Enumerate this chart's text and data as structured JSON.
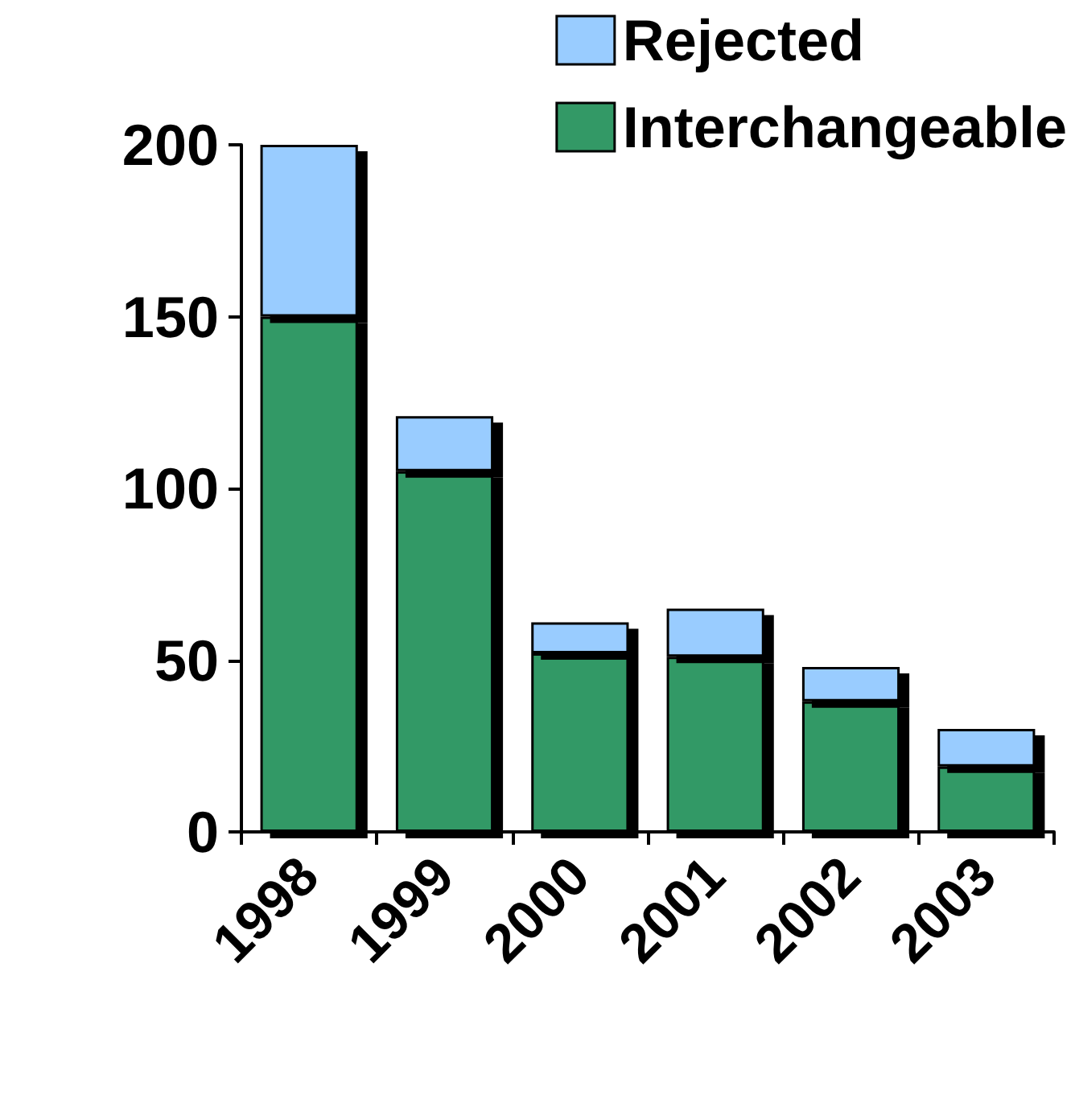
{
  "chart_data": {
    "type": "bar",
    "stacked": true,
    "categories": [
      "1998",
      "1999",
      "2000",
      "2001",
      "2002",
      "2003"
    ],
    "series": [
      {
        "name": "Interchangeable",
        "color": "#339966",
        "values": [
          150,
          105,
          52,
          51,
          38,
          19
        ]
      },
      {
        "name": "Rejected",
        "color": "#99ccff",
        "values": [
          50,
          16,
          9,
          14,
          10,
          11
        ]
      }
    ],
    "ylim": [
      0,
      200
    ],
    "yticks": [
      0,
      50,
      100,
      150,
      200
    ],
    "grid": false,
    "legend": "top right"
  }
}
